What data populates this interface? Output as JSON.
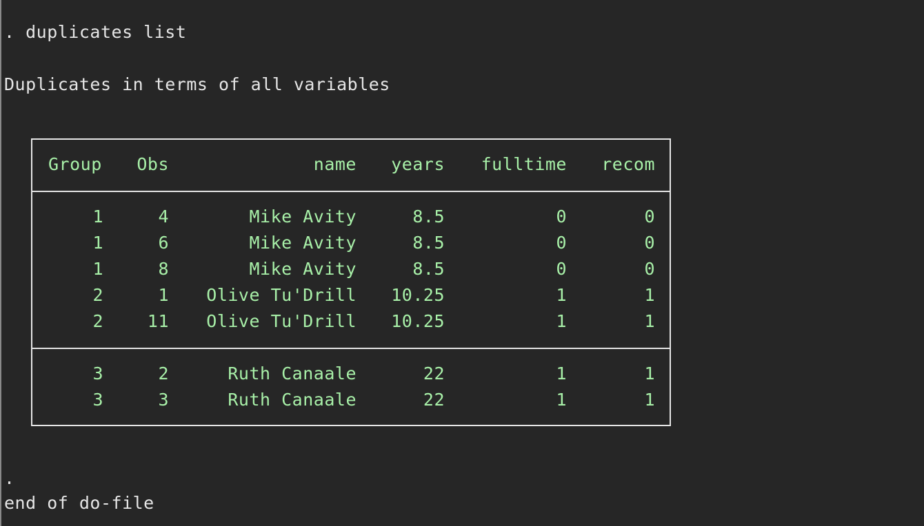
{
  "console": {
    "command": ". duplicates list",
    "heading": "Duplicates in terms of all variables",
    "prompt": ".",
    "footer": "end of do-file"
  },
  "table": {
    "headers": [
      "Group",
      "Obs",
      "name",
      "years",
      "fulltime",
      "recom"
    ],
    "rows": [
      [
        "1",
        "4",
        "Mike Avity",
        "8.5",
        "0",
        "0"
      ],
      [
        "1",
        "6",
        "Mike Avity",
        "8.5",
        "0",
        "0"
      ],
      [
        "1",
        "8",
        "Mike Avity",
        "8.5",
        "0",
        "0"
      ],
      [
        "2",
        "1",
        "Olive Tu'Drill",
        "10.25",
        "1",
        "1"
      ],
      [
        "2",
        "11",
        "Olive Tu'Drill",
        "10.25",
        "1",
        "1"
      ],
      [
        "3",
        "2",
        "Ruth Canaale",
        "22",
        "1",
        "1"
      ],
      [
        "3",
        "3",
        "Ruth Canaale",
        "22",
        "1",
        "1"
      ]
    ]
  },
  "colors": {
    "background": "#262626",
    "text": "#e6e6e6",
    "result": "#a8f0a8"
  }
}
